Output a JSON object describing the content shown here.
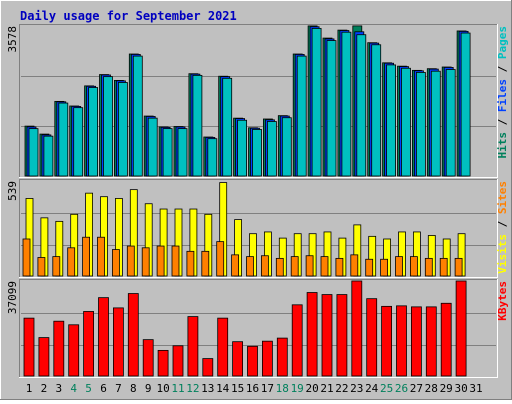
{
  "title": "Daily usage for September 2021",
  "colors": {
    "background": "#c0c0c0",
    "title": "#0000c0",
    "pages": "#00c0c0",
    "files": "#0040ff",
    "hits": "#00805c",
    "visits": "#ffff00",
    "sites": "#ff8000",
    "kbytes": "#ff0000",
    "weekday_label": "#000000",
    "weekend_label": "#00805c"
  },
  "chart_data": [
    {
      "type": "bar",
      "name": "hits-files-pages",
      "legend": [
        "Pages",
        "Files",
        "Hits"
      ],
      "max_label": "3578",
      "ylim": [
        0,
        3578
      ],
      "categories": [
        "1",
        "2",
        "3",
        "4",
        "5",
        "6",
        "7",
        "8",
        "9",
        "10",
        "11",
        "12",
        "13",
        "14",
        "15",
        "16",
        "17",
        "18",
        "19",
        "20",
        "21",
        "22",
        "23",
        "24",
        "25",
        "26",
        "27",
        "28",
        "29",
        "30",
        "31"
      ],
      "series": [
        {
          "name": "Hits",
          "values": [
            1190,
            1000,
            1780,
            1670,
            2150,
            2420,
            2280,
            2910,
            1430,
            1170,
            1180,
            2440,
            930,
            2380,
            1380,
            1150,
            1360,
            1440,
            2910,
            3580,
            3290,
            3480,
            3580,
            3180,
            2700,
            2620,
            2520,
            2560,
            2600,
            3460,
            0
          ]
        },
        {
          "name": "Files",
          "values": [
            1170,
            980,
            1770,
            1660,
            2140,
            2410,
            2270,
            2900,
            1420,
            1160,
            1170,
            2430,
            920,
            2370,
            1370,
            1140,
            1340,
            1430,
            2900,
            3560,
            3270,
            3470,
            3440,
            3170,
            2690,
            2610,
            2510,
            2550,
            2590,
            3450,
            0
          ]
        },
        {
          "name": "Pages",
          "values": [
            1130,
            950,
            1740,
            1630,
            2110,
            2370,
            2230,
            2860,
            1380,
            1130,
            1130,
            2400,
            890,
            2330,
            1330,
            1110,
            1300,
            1390,
            2860,
            3520,
            3230,
            3430,
            3370,
            3130,
            2650,
            2570,
            2470,
            2500,
            2540,
            3410,
            0
          ]
        }
      ]
    },
    {
      "type": "bar",
      "name": "visits-sites",
      "legend": [
        "Sites",
        "Visits"
      ],
      "max_label": "539",
      "ylim": [
        0,
        539
      ],
      "categories": [
        "1",
        "2",
        "3",
        "4",
        "5",
        "6",
        "7",
        "8",
        "9",
        "10",
        "11",
        "12",
        "13",
        "14",
        "15",
        "16",
        "17",
        "18",
        "19",
        "20",
        "21",
        "22",
        "23",
        "24",
        "25",
        "26",
        "27",
        "28",
        "29",
        "30",
        "31"
      ],
      "series": [
        {
          "name": "Visits",
          "values": [
            440,
            330,
            310,
            350,
            470,
            450,
            440,
            490,
            410,
            380,
            380,
            380,
            350,
            530,
            320,
            240,
            250,
            215,
            240,
            240,
            250,
            215,
            290,
            225,
            210,
            250,
            250,
            230,
            210,
            240,
            0
          ]
        },
        {
          "name": "Sites",
          "values": [
            210,
            105,
            110,
            160,
            220,
            220,
            150,
            170,
            160,
            170,
            170,
            140,
            140,
            195,
            120,
            110,
            115,
            100,
            110,
            115,
            110,
            100,
            120,
            95,
            95,
            110,
            110,
            100,
            100,
            100,
            0
          ]
        }
      ]
    },
    {
      "type": "bar",
      "name": "kbytes",
      "legend": [
        "KBytes"
      ],
      "max_label": "37099",
      "ylim": [
        0,
        37099
      ],
      "categories": [
        "1",
        "2",
        "3",
        "4",
        "5",
        "6",
        "7",
        "8",
        "9",
        "10",
        "11",
        "12",
        "13",
        "14",
        "15",
        "16",
        "17",
        "18",
        "19",
        "20",
        "21",
        "22",
        "23",
        "24",
        "25",
        "26",
        "27",
        "28",
        "29",
        "30",
        "31"
      ],
      "series": [
        {
          "name": "KBytes",
          "values": [
            22600,
            15000,
            21400,
            20000,
            25200,
            30600,
            26600,
            32200,
            14200,
            10000,
            11800,
            23200,
            6800,
            22600,
            13400,
            11600,
            13600,
            14800,
            27800,
            32600,
            31800,
            31800,
            37100,
            30200,
            27200,
            27400,
            27000,
            27000,
            28400,
            37100,
            0
          ]
        }
      ]
    }
  ],
  "day_labels": [
    "1",
    "2",
    "3",
    "4",
    "5",
    "6",
    "7",
    "8",
    "9",
    "10",
    "11",
    "12",
    "13",
    "14",
    "15",
    "16",
    "17",
    "18",
    "19",
    "20",
    "21",
    "22",
    "23",
    "24",
    "25",
    "26",
    "27",
    "28",
    "29",
    "30",
    "31"
  ],
  "weekend_days": [
    "4",
    "5",
    "11",
    "12",
    "18",
    "19",
    "25",
    "26"
  ]
}
